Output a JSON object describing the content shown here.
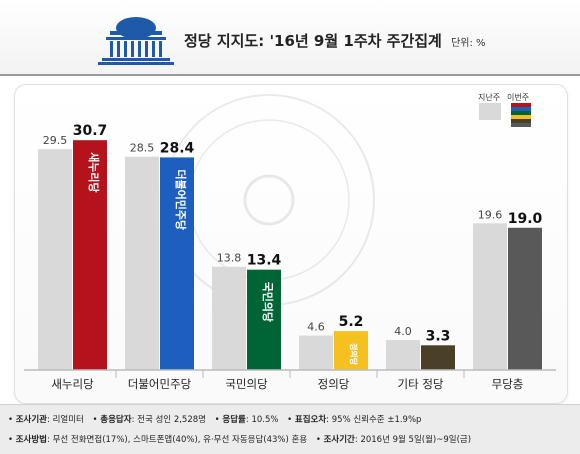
{
  "header": {
    "title": "정당 지지도: '16년 9월 1주차 주간집계",
    "unit": "단위: %"
  },
  "legend": {
    "prev_label": "지난주",
    "curr_label": "이번주"
  },
  "chart_data": {
    "type": "bar",
    "title": "정당 지지도: '16년 9월 1주차 주간집계",
    "categories": [
      "새누리당",
      "더불어민주당",
      "국민의당",
      "정의당",
      "기타 정당",
      "무당층"
    ],
    "series": [
      {
        "name": "지난주",
        "values": [
          29.5,
          28.5,
          13.8,
          4.6,
          4.0,
          19.6
        ]
      },
      {
        "name": "이번주",
        "values": [
          30.7,
          28.4,
          13.4,
          5.2,
          3.3,
          19.0
        ]
      }
    ],
    "ylim": [
      0,
      35
    ],
    "grid": false,
    "legend": "top-right"
  },
  "colors": {
    "prev": "#d9d9d9",
    "parties": [
      "#b5121b",
      "#1d5fbf",
      "#006536",
      "#f5c121",
      "#4a4028",
      "#595959"
    ],
    "axis": "#bbbbbb"
  },
  "party_logos": [
    "새누리당",
    "더불어민주당",
    "국민의당",
    "정의당"
  ],
  "footer": {
    "l1_k1": "조사기관",
    "l1_v1": "리얼미터",
    "l1_k2": "총응답자",
    "l1_v2": "전국 성인 2,528명",
    "l1_k3": "응답률",
    "l1_v3": "10.5%",
    "l1_k4": "표집오차",
    "l1_v4": "95% 신뢰수준 ±1.9%p",
    "l2_k1": "조사방법",
    "l2_v1": "무선 전화면접(17%), 스마트폰앱(40%), 유·무선 자동응답(43%) 혼용",
    "l2_k2": "조사기간",
    "l2_v2": "2016년 9월 5일(월)~9일(금)"
  }
}
